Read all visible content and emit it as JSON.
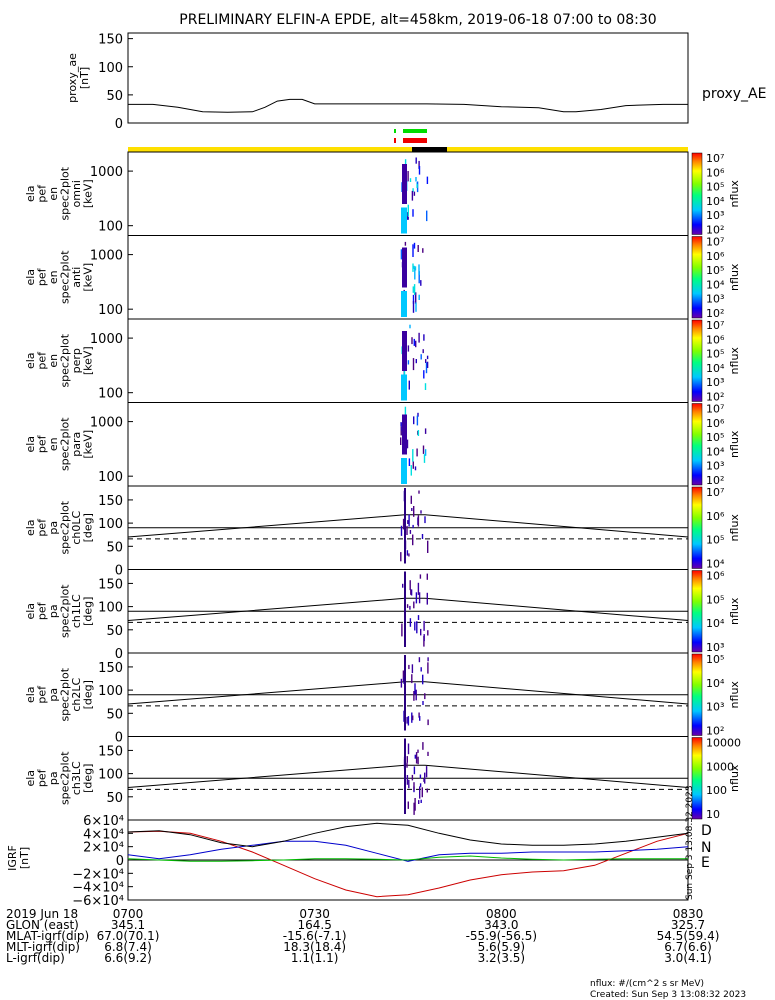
{
  "title": "PRELIMINARY ELFIN-A EPDE, alt=458km, 2019-06-18 07:00 to 08:30",
  "colors": {
    "ae_line": "#000000",
    "grf_d": "#cc0000",
    "grf_n": "#0000cc",
    "grf_e": "#00bb00",
    "grf_total": "#000000",
    "flag_green": "#00dd00",
    "flag_red": "#ee0000",
    "bar_yellow": "#ffe000",
    "bar_black": "#000000"
  },
  "icons": {
    "colorbar": "rainbow-colorbar-icon"
  },
  "chart_data": [
    {
      "id": "ae",
      "type": "line",
      "ylabel": "proxy_ae\n[nT]",
      "legend": "proxy_AE",
      "ylim": [
        0,
        160
      ],
      "yticks": [
        "0",
        "50",
        "100",
        "150"
      ],
      "ytick_values": [
        0,
        50,
        100,
        150
      ],
      "x_minutes": [
        0,
        4,
        8,
        12,
        16,
        20,
        22,
        24,
        26,
        28,
        30,
        36,
        42,
        48,
        54,
        60,
        66,
        70,
        72,
        76,
        80,
        86,
        90
      ],
      "values": [
        33,
        33,
        28,
        20,
        19,
        20,
        28,
        39,
        42,
        42,
        34,
        34,
        34,
        34,
        33,
        29,
        27,
        20,
        20,
        24,
        31,
        33,
        33
      ]
    },
    {
      "id": "omni",
      "type": "heatmap",
      "ylabel": [
        "ela",
        "pef",
        "en",
        "spec2plot",
        "omni",
        "[keV]"
      ],
      "yticks": [
        "100",
        "1000"
      ],
      "colorbar": {
        "label": "nflux",
        "ticks": [
          "10⁷",
          "10⁶",
          "10⁵",
          "10⁴",
          "10³",
          "10²"
        ]
      }
    },
    {
      "id": "anti",
      "type": "heatmap",
      "ylabel": [
        "ela",
        "pef",
        "en",
        "spec2plot",
        "anti",
        "[keV]"
      ],
      "yticks": [
        "100",
        "1000"
      ],
      "colorbar": {
        "label": "nflux",
        "ticks": [
          "10⁷",
          "10⁶",
          "10⁵",
          "10⁴",
          "10³",
          "10²"
        ]
      }
    },
    {
      "id": "perp",
      "type": "heatmap",
      "ylabel": [
        "ela",
        "pef",
        "en",
        "spec2plot",
        "perp",
        "[keV]"
      ],
      "yticks": [
        "100",
        "1000"
      ],
      "colorbar": {
        "label": "nflux",
        "ticks": [
          "10⁷",
          "10⁶",
          "10⁵",
          "10⁴",
          "10³",
          "10²"
        ]
      }
    },
    {
      "id": "para",
      "type": "heatmap",
      "ylabel": [
        "ela",
        "pef",
        "en",
        "spec2plot",
        "para",
        "[keV]"
      ],
      "yticks": [
        "100",
        "1000"
      ],
      "colorbar": {
        "label": "nflux",
        "ticks": [
          "10⁷",
          "10⁶",
          "10⁵",
          "10⁴",
          "10³",
          "10²"
        ]
      }
    },
    {
      "id": "ch0",
      "type": "heatmap",
      "ylabel": [
        "ela",
        "pef",
        "pa",
        "spec2plot",
        "ch0LC",
        "[deg]"
      ],
      "yticks": [
        "0",
        "50",
        "100",
        "150"
      ],
      "colorbar": {
        "label": "nflux",
        "ticks": [
          "10⁷",
          "10⁶",
          "10⁵",
          "10⁴"
        ]
      }
    },
    {
      "id": "ch1",
      "type": "heatmap",
      "ylabel": [
        "ela",
        "pef",
        "pa",
        "spec2plot",
        "ch1LC",
        "[deg]"
      ],
      "yticks": [
        "0",
        "50",
        "100",
        "150"
      ],
      "colorbar": {
        "label": "nflux",
        "ticks": [
          "10⁶",
          "10⁵",
          "10⁴",
          "10³"
        ]
      }
    },
    {
      "id": "ch2",
      "type": "heatmap",
      "ylabel": [
        "ela",
        "pef",
        "pa",
        "spec2plot",
        "ch2LC",
        "[deg]"
      ],
      "yticks": [
        "0",
        "50",
        "100",
        "150"
      ],
      "colorbar": {
        "label": "nflux",
        "ticks": [
          "10⁵",
          "10⁴",
          "10³",
          "10²"
        ]
      }
    },
    {
      "id": "ch3",
      "type": "heatmap",
      "ylabel": [
        "ela",
        "pef",
        "pa",
        "spec2plot",
        "ch3LC",
        "[deg]"
      ],
      "yticks": [
        "50",
        "100",
        "150"
      ],
      "colorbar": {
        "label": "nflux",
        "ticks": [
          "10000",
          "1000",
          "100",
          "10"
        ]
      }
    },
    {
      "id": "grf",
      "type": "line",
      "ylabel": "IGRF\n[nT]",
      "ylim": [
        -60000,
        60000
      ],
      "yticks": [
        "6×10⁴",
        "4×10⁴",
        "2×10⁴",
        "0",
        "−2×10⁴",
        "−4×10⁴",
        "−6×10⁴"
      ],
      "ytick_values": [
        60000,
        40000,
        20000,
        0,
        -20000,
        -40000,
        -60000
      ],
      "x_minutes": [
        0,
        5,
        10,
        15,
        20,
        25,
        30,
        35,
        40,
        45,
        50,
        55,
        60,
        65,
        70,
        75,
        80,
        85,
        90
      ],
      "series": [
        {
          "name": "D",
          "values": [
            42000,
            43000,
            40000,
            28000,
            12000,
            -8000,
            -28000,
            -45000,
            -55000,
            -52000,
            -42000,
            -30000,
            -22000,
            -18000,
            -16000,
            -8000,
            10000,
            28000,
            40000
          ]
        },
        {
          "name": "N",
          "values": [
            8000,
            2000,
            8000,
            16000,
            22000,
            28000,
            28000,
            22000,
            10000,
            -2000,
            8000,
            10000,
            10000,
            12000,
            12000,
            12000,
            14000,
            16000,
            20000
          ]
        },
        {
          "name": "E",
          "values": [
            2000,
            0,
            -2000,
            -2000,
            -1000,
            0,
            2000,
            2000,
            1000,
            0,
            4000,
            6000,
            3000,
            1000,
            0,
            1000,
            2000,
            2000,
            2000
          ]
        },
        {
          "name": "",
          "values": [
            42000,
            44000,
            38000,
            26000,
            20000,
            28000,
            40000,
            50000,
            55000,
            52000,
            40000,
            30000,
            24000,
            22000,
            22000,
            24000,
            28000,
            34000,
            40000
          ]
        }
      ]
    }
  ],
  "footer": {
    "rows": [
      {
        "label": "2019 Jun 18",
        "v1": "0700",
        "v2": "0730",
        "v3": "0800",
        "v4": "0830"
      },
      {
        "label": "GLON (east)",
        "v1": "345.1",
        "v2": "164.5",
        "v3": "343.0",
        "v4": "325.7"
      },
      {
        "label": "MLAT-igrf(dip)",
        "v1": "67.0(70.1)",
        "v2": "-15.6(-7.1)",
        "v3": "-55.9(-56.5)",
        "v4": "54.5(59.4)"
      },
      {
        "label": "MLT-igrf(dip)",
        "v1": "6.8(7.4)",
        "v2": "18.3(18.4)",
        "v3": "5.6(5.9)",
        "v4": "6.7(6.6)"
      },
      {
        "label": "L-igrf(dip)",
        "v1": "6.6(9.2)",
        "v2": "1.1(1.1)",
        "v3": "3.2(3.5)",
        "v4": "3.0(4.1)"
      }
    ],
    "units_note": "nflux: #/(cm^2 s sr MeV)",
    "created": "Created: Sun Sep  3 13:08:32 2023",
    "side_stamp": "Sun Sep  3 13:08:32 2023"
  }
}
